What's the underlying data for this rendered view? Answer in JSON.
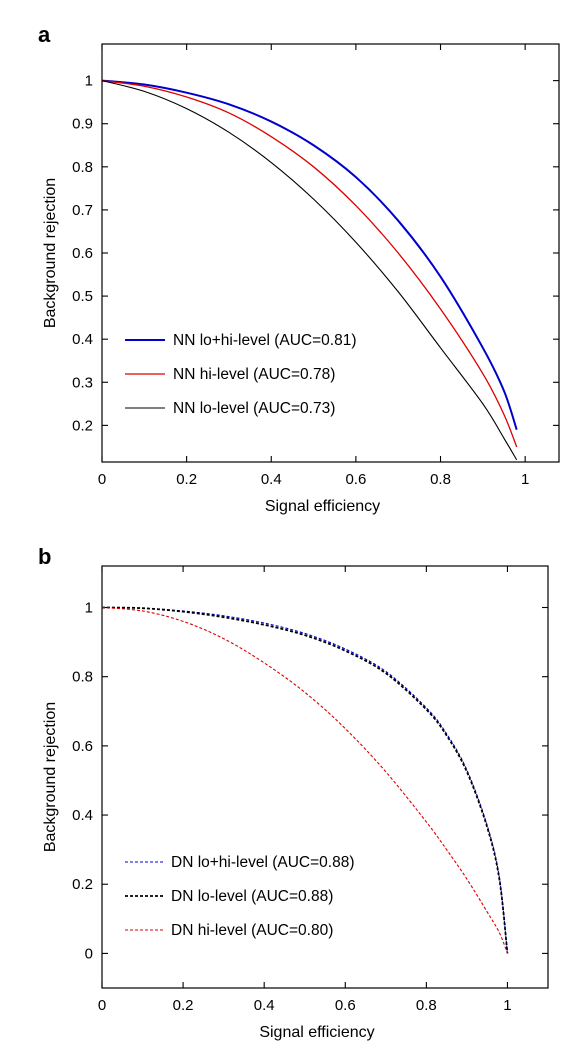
{
  "chart_data": [
    {
      "panel": "a",
      "type": "line",
      "xlabel": "Signal efficiency",
      "ylabel": "Background rejection",
      "xlim": [
        0,
        1.08
      ],
      "ylim": [
        0.115,
        1.085
      ],
      "xticks": [
        0,
        0.2,
        0.4,
        0.6,
        0.8,
        1
      ],
      "xtick_labels": [
        "0",
        "0.2",
        "0.4",
        "0.6",
        "0.8",
        "1"
      ],
      "yticks": [
        0.2,
        0.3,
        0.4,
        0.5,
        0.6,
        0.7,
        0.8,
        0.9,
        1
      ],
      "ytick_labels": [
        "0.2",
        "0.3",
        "0.4",
        "0.5",
        "0.6",
        "0.7",
        "0.8",
        "0.9",
        "1"
      ],
      "legend_position": "bottom-left",
      "series": [
        {
          "name": "NN lo+hi-level (AUC=0.81)",
          "color": "#0000cc",
          "style": "solid",
          "width": 2,
          "x": [
            0,
            0.1,
            0.2,
            0.3,
            0.4,
            0.5,
            0.6,
            0.7,
            0.8,
            0.9,
            0.95,
            0.98
          ],
          "y": [
            1,
            0.991,
            0.972,
            0.945,
            0.905,
            0.85,
            0.776,
            0.675,
            0.545,
            0.38,
            0.28,
            0.19
          ]
        },
        {
          "name": "NN hi-level (AUC=0.78)",
          "color": "#dd0000",
          "style": "solid",
          "width": 1.3,
          "x": [
            0,
            0.1,
            0.2,
            0.3,
            0.4,
            0.5,
            0.6,
            0.7,
            0.8,
            0.9,
            0.95,
            0.98
          ],
          "y": [
            1,
            0.987,
            0.962,
            0.925,
            0.87,
            0.8,
            0.71,
            0.6,
            0.47,
            0.32,
            0.225,
            0.15
          ]
        },
        {
          "name": "NN lo-level (AUC=0.73)",
          "color": "#000000",
          "style": "solid",
          "width": 1.1,
          "x": [
            0,
            0.1,
            0.2,
            0.3,
            0.4,
            0.5,
            0.6,
            0.7,
            0.8,
            0.9,
            0.95,
            0.98
          ],
          "y": [
            1,
            0.975,
            0.935,
            0.88,
            0.81,
            0.725,
            0.625,
            0.51,
            0.38,
            0.25,
            0.17,
            0.12
          ]
        }
      ]
    },
    {
      "panel": "b",
      "type": "line",
      "xlabel": "Signal efficiency",
      "ylabel": "Background rejection",
      "xlim": [
        0,
        1.1
      ],
      "ylim": [
        -0.1,
        1.12
      ],
      "xticks": [
        0,
        0.2,
        0.4,
        0.6,
        0.8,
        1
      ],
      "xtick_labels": [
        "0",
        "0.2",
        "0.4",
        "0.6",
        "0.8",
        "1"
      ],
      "yticks": [
        0,
        0.2,
        0.4,
        0.6,
        0.8,
        1
      ],
      "ytick_labels": [
        "0",
        "0.2",
        "0.4",
        "0.6",
        "0.8",
        "1"
      ],
      "legend_position": "bottom-left",
      "series": [
        {
          "name": "DN lo+hi-level (AUC=0.88)",
          "color": "#0000cc",
          "style": "dashed",
          "width": 1.1,
          "x": [
            0,
            0.1,
            0.2,
            0.3,
            0.4,
            0.5,
            0.6,
            0.7,
            0.8,
            0.85,
            0.9,
            0.95,
            0.98,
            1
          ],
          "y": [
            1,
            0.998,
            0.99,
            0.976,
            0.955,
            0.925,
            0.88,
            0.815,
            0.71,
            0.635,
            0.53,
            0.37,
            0.22,
            0
          ]
        },
        {
          "name": "DN lo-level (AUC=0.88)",
          "color": "#000000",
          "style": "dashed",
          "width": 1.8,
          "x": [
            0,
            0.1,
            0.2,
            0.3,
            0.4,
            0.5,
            0.6,
            0.7,
            0.8,
            0.85,
            0.9,
            0.95,
            0.98,
            1
          ],
          "y": [
            1,
            0.998,
            0.988,
            0.972,
            0.95,
            0.92,
            0.875,
            0.81,
            0.705,
            0.63,
            0.525,
            0.365,
            0.215,
            0
          ]
        },
        {
          "name": "DN hi-level (AUC=0.80)",
          "color": "#dd0000",
          "style": "dashed",
          "width": 1.1,
          "x": [
            0,
            0.1,
            0.2,
            0.3,
            0.4,
            0.5,
            0.6,
            0.7,
            0.8,
            0.85,
            0.9,
            0.95,
            0.98,
            1
          ],
          "y": [
            1,
            0.99,
            0.96,
            0.91,
            0.84,
            0.755,
            0.65,
            0.525,
            0.38,
            0.3,
            0.215,
            0.12,
            0.06,
            0
          ]
        }
      ]
    }
  ]
}
